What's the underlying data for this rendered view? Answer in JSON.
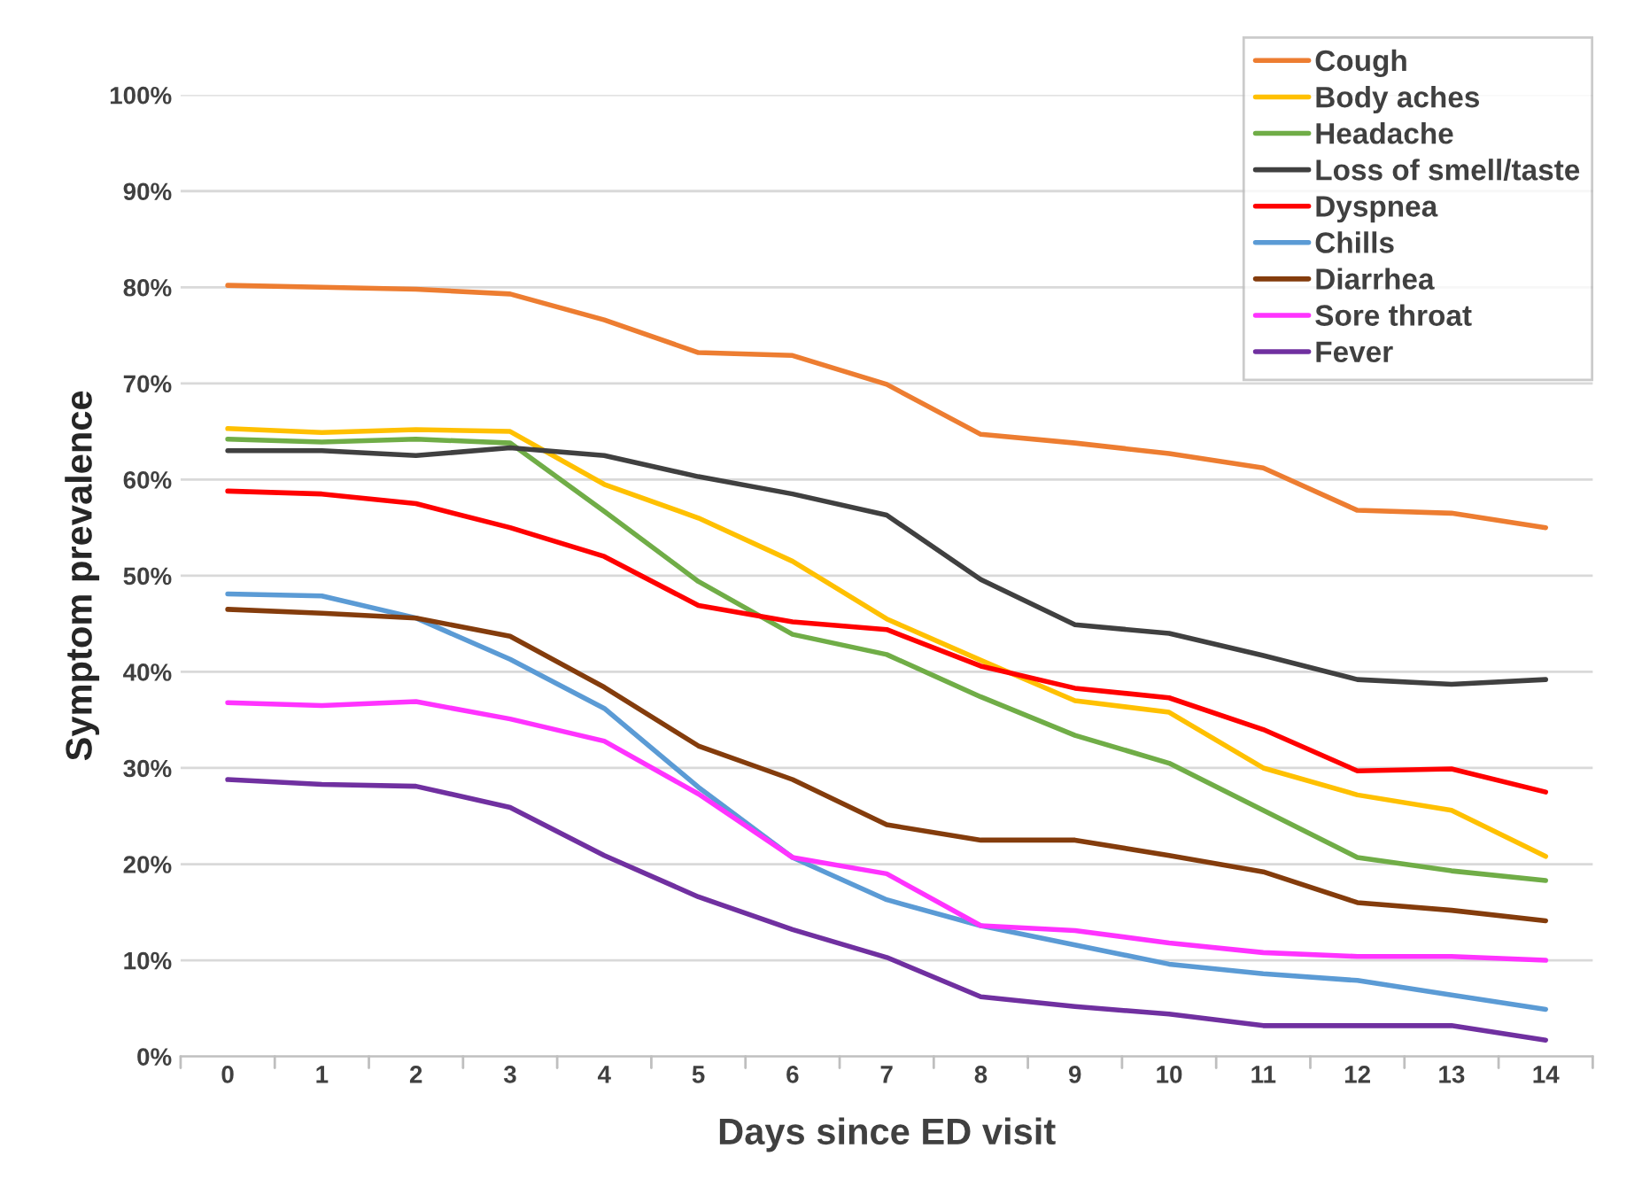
{
  "chart_data": {
    "type": "line",
    "xlabel": "Days since ED visit",
    "ylabel": "Symptom prevalence",
    "categories": [
      "0",
      "1",
      "2",
      "3",
      "4",
      "5",
      "6",
      "7",
      "8",
      "9",
      "10",
      "11",
      "12",
      "13",
      "14"
    ],
    "series": [
      {
        "name": "Cough",
        "color": "#ed7d31",
        "values": [
          80.2,
          80,
          79.8,
          79.3,
          76.6,
          73.2,
          72.9,
          69.9,
          64.7,
          63.8,
          62.7,
          61.2,
          56.8,
          56.5,
          55.0
        ]
      },
      {
        "name": "Body aches",
        "color": "#ffc000",
        "values": [
          65.3,
          64.9,
          65.2,
          65.0,
          59.5,
          56.0,
          51.5,
          45.5,
          41.2,
          37.0,
          35.8,
          30.0,
          27.2,
          25.6,
          20.8
        ]
      },
      {
        "name": "Headache",
        "color": "#70ad47",
        "values": [
          64.2,
          63.9,
          64.2,
          63.8,
          56.7,
          49.4,
          43.9,
          41.8,
          37.4,
          33.4,
          30.5,
          25.6,
          20.7,
          19.3,
          18.3
        ]
      },
      {
        "name": "Loss of smell/taste",
        "color": "#404040",
        "values": [
          63.0,
          63.0,
          62.5,
          63.3,
          62.5,
          60.3,
          58.5,
          56.3,
          49.6,
          44.9,
          44.0,
          41.7,
          39.2,
          38.7,
          39.2
        ]
      },
      {
        "name": "Dyspnea",
        "color": "#ff0000",
        "values": [
          58.8,
          58.5,
          57.5,
          55.0,
          52.0,
          46.9,
          45.2,
          44.4,
          40.6,
          38.3,
          37.3,
          34.0,
          29.7,
          29.9,
          27.5
        ]
      },
      {
        "name": "Chills",
        "color": "#5b9bd5",
        "values": [
          48.1,
          47.9,
          45.6,
          41.3,
          36.2,
          28.0,
          20.7,
          16.3,
          13.6,
          11.6,
          9.6,
          8.6,
          7.9,
          6.4,
          4.9
        ]
      },
      {
        "name": "Diarrhea",
        "color": "#843c0c",
        "values": [
          46.5,
          46.1,
          45.6,
          43.7,
          38.4,
          32.3,
          28.8,
          24.1,
          22.5,
          22.5,
          20.9,
          19.2,
          16.0,
          15.2,
          14.1
        ]
      },
      {
        "name": "Sore throat",
        "color": "#ff33ff",
        "values": [
          36.8,
          36.5,
          36.9,
          35.1,
          32.8,
          27.3,
          20.7,
          19.0,
          13.6,
          13.1,
          11.8,
          10.8,
          10.4,
          10.4,
          10.0
        ]
      },
      {
        "name": "Fever",
        "color": "#7030a0",
        "values": [
          28.8,
          28.3,
          28.1,
          25.9,
          20.9,
          16.6,
          13.2,
          10.3,
          6.2,
          5.2,
          4.4,
          3.2,
          3.2,
          3.2,
          1.7
        ]
      }
    ],
    "ylim": [
      0,
      100
    ],
    "yticks": [
      {
        "value": 0,
        "label": "0%"
      },
      {
        "value": 10,
        "label": "10%"
      },
      {
        "value": 20,
        "label": "20%"
      },
      {
        "value": 30,
        "label": "30%"
      },
      {
        "value": 40,
        "label": "40%"
      },
      {
        "value": 50,
        "label": "50%"
      },
      {
        "value": 60,
        "label": "60%"
      },
      {
        "value": 70,
        "label": "70%"
      },
      {
        "value": 80,
        "label": "80%"
      },
      {
        "value": 90,
        "label": "90%"
      },
      {
        "value": 100,
        "label": "100%"
      }
    ],
    "grid": "y",
    "legend": "top right",
    "marker": "none",
    "line_style": "solid"
  }
}
